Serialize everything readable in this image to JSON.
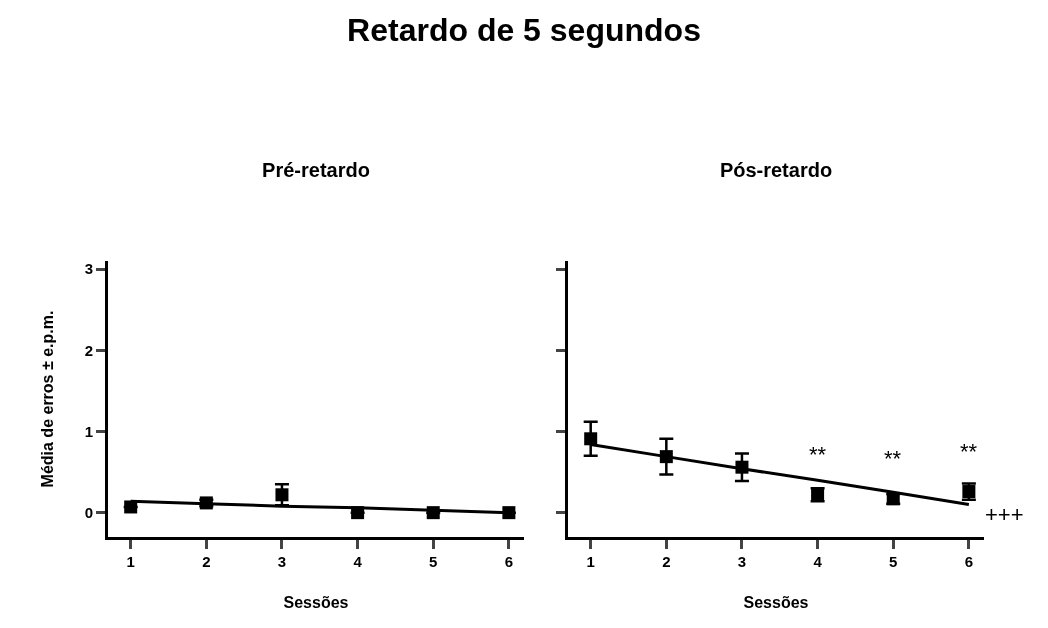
{
  "chart_data": [
    {
      "type": "scatter",
      "title": "Pré-retardo",
      "xlabel": "Sessões",
      "ylabel": "Média de erros ± e.p.m.",
      "annotations": [
        "Retardo de 5 segundos"
      ],
      "x": [
        1,
        2,
        3,
        4,
        5,
        6
      ],
      "xlim": [
        0.7,
        6.2
      ],
      "ylim": [
        -0.3,
        3.1
      ],
      "xticks": [
        1,
        2,
        3,
        4,
        5,
        6
      ],
      "yticks": [
        0,
        1,
        2,
        3
      ],
      "grid": false,
      "series": [
        {
          "marker": "square",
          "color": "#000000",
          "values": [
            0.07,
            0.12,
            0.22,
            0.0,
            0.0,
            0.0
          ],
          "errors": [
            null,
            0.04,
            0.13,
            null,
            null,
            null
          ]
        },
        {
          "type": "line",
          "color": "#000000",
          "values": [
            0.14,
            0.11,
            0.08,
            0.06,
            0.03,
            0.0
          ]
        }
      ]
    },
    {
      "type": "scatter",
      "title": "Pós-retardo",
      "xlabel": "Sessões",
      "x": [
        1,
        2,
        3,
        4,
        5,
        6
      ],
      "xlim": [
        0.7,
        6.2
      ],
      "ylim": [
        -0.3,
        3.1
      ],
      "xticks": [
        1,
        2,
        3,
        4,
        5,
        6
      ],
      "yticks": [
        {
          "value": 0,
          "label": null
        },
        {
          "value": 1,
          "label": null
        },
        {
          "value": 2,
          "label": null
        },
        {
          "value": 3,
          "label": null
        }
      ],
      "tick_labels": "x",
      "grid": false,
      "annotations": [
        {
          "text": "**",
          "x": 4,
          "y": 0.22
        },
        {
          "text": "**",
          "x": 5,
          "y": 0.17
        },
        {
          "text": "**",
          "x": 6,
          "y": 0.26
        },
        {
          "text": "+++",
          "x": 6,
          "y": 0.1
        }
      ],
      "series": [
        {
          "marker": "square",
          "color": "#000000",
          "values": [
            0.91,
            0.69,
            0.56,
            0.22,
            0.17,
            0.26
          ],
          "errors": [
            0.21,
            0.22,
            0.17,
            0.08,
            0.06,
            0.1
          ]
        },
        {
          "type": "line",
          "color": "#000000",
          "values": [
            0.84,
            0.69,
            0.54,
            0.4,
            0.25,
            0.1
          ]
        }
      ]
    }
  ]
}
